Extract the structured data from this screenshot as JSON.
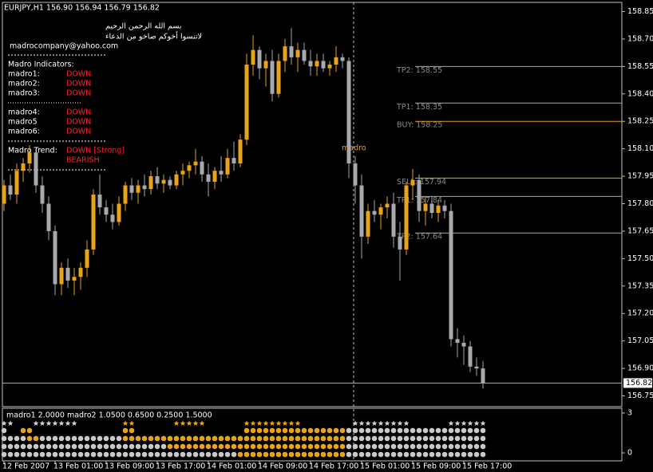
{
  "chart_data": {
    "type": "candlestick",
    "header": "EURJPY,H1  156.90 156.94 156.79 156.82",
    "up_color": "#e8a317",
    "down_color": "#a9a9a9",
    "categories": [
      "12 Feb 2007",
      null,
      null,
      null,
      null,
      null,
      null,
      null,
      "13 Feb 01:00",
      null,
      null,
      null,
      null,
      null,
      null,
      null,
      "13 Feb 09:00",
      null,
      null,
      null,
      null,
      null,
      null,
      null,
      "13 Feb 17:00",
      null,
      null,
      null,
      null,
      null,
      null,
      null,
      "14 Feb 01:00",
      null,
      null,
      null,
      null,
      null,
      null,
      null,
      "14 Feb 09:00",
      null,
      null,
      null,
      null,
      null,
      null,
      null,
      "14 Feb 17:00",
      null,
      null,
      null,
      null,
      null,
      null,
      null,
      "15 Feb 01:00",
      null,
      null,
      null,
      null,
      null,
      null,
      null,
      "15 Feb 09:00",
      null,
      null,
      null,
      null,
      null,
      null,
      null,
      "15 Feb 17:00",
      null,
      null,
      null
    ],
    "open": [
      157.8,
      157.9,
      157.85,
      157.98,
      158.02,
      158.08,
      157.9,
      157.8,
      157.65,
      157.36,
      157.45,
      157.38,
      157.4,
      157.45,
      157.55,
      157.85,
      157.78,
      157.74,
      157.7,
      157.8,
      157.9,
      157.86,
      157.9,
      157.88,
      157.95,
      157.91,
      157.93,
      157.9,
      157.96,
      157.98,
      158.01,
      158.03,
      157.96,
      157.92,
      157.98,
      157.96,
      158.05,
      158.02,
      158.15,
      158.56,
      158.64,
      158.54,
      158.58,
      158.4,
      158.58,
      158.66,
      158.6,
      158.64,
      158.58,
      158.55,
      158.58,
      158.54,
      158.56,
      158.6,
      158.58,
      158.02,
      157.9,
      157.62,
      157.76,
      157.74,
      157.78,
      157.8,
      157.62,
      157.55,
      157.9,
      157.93,
      157.76,
      157.8,
      157.75,
      157.79,
      157.76,
      157.06,
      157.04,
      157.02,
      156.91,
      156.9
    ],
    "high": [
      157.93,
      157.96,
      158.02,
      158.05,
      158.12,
      158.1,
      157.95,
      157.84,
      157.68,
      157.48,
      157.5,
      157.45,
      157.48,
      157.6,
      157.88,
      157.96,
      157.82,
      157.8,
      157.84,
      157.92,
      157.94,
      157.93,
      157.96,
      157.98,
      158.0,
      157.96,
      157.95,
      157.98,
      158.02,
      158.03,
      158.1,
      158.06,
      158.02,
      158.0,
      158.06,
      158.1,
      158.14,
      158.18,
      158.62,
      158.72,
      158.66,
      158.62,
      158.64,
      158.62,
      158.7,
      158.76,
      158.68,
      158.68,
      158.64,
      158.62,
      158.62,
      158.58,
      158.66,
      158.62,
      158.6,
      158.06,
      157.96,
      157.8,
      157.82,
      157.8,
      157.84,
      157.86,
      157.7,
      157.92,
      157.99,
      157.96,
      157.84,
      157.84,
      157.82,
      157.82,
      157.8,
      157.12,
      157.08,
      157.05,
      156.96,
      156.94
    ],
    "low": [
      157.76,
      157.82,
      157.8,
      157.92,
      157.97,
      157.86,
      157.75,
      157.6,
      157.3,
      157.3,
      157.34,
      157.3,
      157.33,
      157.4,
      157.52,
      157.74,
      157.7,
      157.66,
      157.68,
      157.76,
      157.82,
      157.8,
      157.84,
      157.85,
      157.88,
      157.86,
      157.88,
      157.88,
      157.9,
      157.94,
      157.96,
      157.92,
      157.84,
      157.88,
      157.92,
      157.94,
      157.98,
      158.0,
      158.12,
      158.5,
      158.48,
      158.44,
      158.36,
      158.38,
      158.52,
      158.56,
      158.52,
      158.56,
      158.5,
      158.5,
      158.52,
      158.5,
      158.52,
      158.54,
      157.94,
      157.8,
      157.5,
      157.58,
      157.7,
      157.66,
      157.72,
      157.56,
      157.38,
      157.52,
      157.82,
      157.7,
      157.68,
      157.72,
      157.7,
      157.72,
      157.02,
      156.96,
      156.92,
      156.88,
      156.86,
      156.79
    ],
    "close": [
      157.9,
      157.85,
      157.98,
      158.02,
      158.08,
      157.9,
      157.8,
      157.65,
      157.36,
      157.45,
      157.38,
      157.4,
      157.45,
      157.55,
      157.85,
      157.78,
      157.74,
      157.7,
      157.8,
      157.9,
      157.86,
      157.9,
      157.88,
      157.95,
      157.91,
      157.93,
      157.9,
      157.96,
      157.98,
      158.01,
      158.03,
      157.96,
      157.92,
      157.98,
      157.96,
      158.05,
      158.02,
      158.15,
      158.56,
      158.64,
      158.54,
      158.58,
      158.4,
      158.58,
      158.66,
      158.6,
      158.64,
      158.58,
      158.55,
      158.58,
      158.54,
      158.56,
      158.6,
      158.58,
      158.02,
      157.9,
      157.62,
      157.76,
      157.74,
      157.78,
      157.8,
      157.62,
      157.55,
      157.9,
      157.93,
      157.76,
      157.8,
      157.75,
      157.79,
      157.76,
      157.06,
      157.04,
      157.02,
      156.91,
      156.9,
      156.82
    ],
    "ylim": [
      156.7,
      158.9
    ],
    "yticks": [
      {
        "value": 158.85,
        "label": "158.85"
      },
      {
        "value": 158.7,
        "label": "158.70"
      },
      {
        "value": 158.55,
        "label": "158.55"
      },
      {
        "value": 158.4,
        "label": "158.40"
      },
      {
        "value": 158.25,
        "label": "158.25"
      },
      {
        "value": 158.1,
        "label": "158.10"
      },
      {
        "value": 157.95,
        "label": "157.95"
      },
      {
        "value": 157.8,
        "label": "157.80"
      },
      {
        "value": 157.65,
        "label": "157.65"
      },
      {
        "value": 157.5,
        "label": "157.50"
      },
      {
        "value": 157.35,
        "label": "157.35"
      },
      {
        "value": 157.2,
        "label": "157.20"
      },
      {
        "value": 157.05,
        "label": "157.05"
      },
      {
        "value": 156.9,
        "label": "156.90"
      },
      {
        "value": 156.75,
        "label": "156.75"
      }
    ],
    "bid": {
      "value": 156.82,
      "label": "156.82"
    },
    "levels": [
      {
        "value": 158.55,
        "label": "TP2: 158.55",
        "color": "#a9a9a9"
      },
      {
        "value": 158.35,
        "label": "TP1: 158.35",
        "color": "#a9a9a9"
      },
      {
        "value": 158.25,
        "label": "BUY: 158.25",
        "color": "#e8a317"
      },
      {
        "value": 157.94,
        "label": "SELL: 157.94",
        "color": "#e8a317"
      },
      {
        "value": 157.84,
        "label": "TP1: 157.84",
        "color": "#a9a9a9"
      },
      {
        "value": 157.64,
        "label": "TP2: 157.64",
        "color": "#a9a9a9"
      }
    ],
    "annotation": "madro",
    "info_panel": {
      "basmala": "بسم الله الرحمن الرحيم",
      "dua": "لاتنسوا أخوكم صاخو من الدعاء",
      "email": "madrocompany@yahoo.com",
      "indicators_title": "Madro Indicators:",
      "signal_color": "#ff2020",
      "indicators": [
        {
          "name": "madro1:",
          "signal": "DOWN"
        },
        {
          "name": "madro2:",
          "signal": "DOWN"
        },
        {
          "name": "madro3:",
          "signal": "DOWN"
        },
        {
          "name": "madro4:",
          "signal": "DOWN"
        },
        {
          "name": "madro5",
          "signal": "DOWN"
        },
        {
          "name": "madro6:",
          "signal": "DOWN"
        }
      ],
      "trend_label": "Madro Trend:",
      "trend": "DOWN [Strong]",
      "bias": "BEARISH"
    },
    "indicator": {
      "header": "madro1 2.0000  madro2 1.0500 0.6500 0.2500 1.5000",
      "ylim": [
        0,
        3
      ],
      "yticks": [
        3,
        0
      ],
      "stars": [
        0,
        0,
        null,
        null,
        null,
        0,
        0,
        0,
        0,
        0,
        0,
        0,
        null,
        null,
        null,
        null,
        null,
        null,
        null,
        1,
        1,
        null,
        null,
        null,
        null,
        null,
        null,
        1,
        1,
        1,
        1,
        1,
        null,
        null,
        null,
        null,
        null,
        null,
        1,
        1,
        1,
        1,
        1,
        1,
        1,
        1,
        1,
        null,
        null,
        null,
        null,
        null,
        null,
        null,
        null,
        0,
        0,
        0,
        0,
        0,
        0,
        0,
        0,
        0,
        null,
        null,
        null,
        null,
        null,
        null,
        0,
        0,
        0,
        0,
        0,
        0
      ],
      "rows": [
        [
          0,
          null,
          null,
          1,
          1,
          null,
          null,
          null,
          null,
          null,
          null,
          null,
          null,
          null,
          null,
          null,
          null,
          null,
          null,
          1,
          1,
          null,
          null,
          null,
          null,
          null,
          null,
          null,
          null,
          null,
          null,
          null,
          null,
          null,
          null,
          null,
          null,
          null,
          1,
          1,
          1,
          1,
          1,
          1,
          1,
          1,
          1,
          1,
          1,
          1,
          1,
          1,
          1,
          1,
          0,
          0,
          0,
          0,
          0,
          0,
          0,
          0,
          0,
          0,
          0,
          0,
          0,
          0,
          0,
          0,
          0,
          0,
          0,
          0,
          0,
          0
        ],
        [
          0,
          0,
          0,
          0,
          1,
          1,
          0,
          0,
          0,
          0,
          0,
          0,
          0,
          0,
          0,
          0,
          0,
          0,
          0,
          1,
          1,
          1,
          1,
          1,
          1,
          1,
          1,
          1,
          1,
          1,
          1,
          1,
          1,
          1,
          1,
          1,
          1,
          1,
          1,
          1,
          1,
          1,
          1,
          1,
          1,
          1,
          1,
          1,
          1,
          1,
          1,
          1,
          1,
          1,
          0,
          0,
          0,
          0,
          0,
          0,
          0,
          0,
          0,
          0,
          0,
          0,
          0,
          0,
          0,
          0,
          0,
          0,
          0,
          0,
          0,
          0
        ],
        [
          0,
          0,
          0,
          0,
          0,
          0,
          0,
          0,
          0,
          0,
          0,
          0,
          0,
          0,
          0,
          0,
          0,
          0,
          0,
          0,
          0,
          0,
          0,
          0,
          0,
          0,
          1,
          1,
          1,
          1,
          1,
          1,
          1,
          1,
          1,
          1,
          1,
          1,
          1,
          1,
          1,
          1,
          1,
          1,
          1,
          1,
          1,
          1,
          1,
          1,
          1,
          1,
          1,
          1,
          0,
          0,
          0,
          0,
          0,
          0,
          0,
          0,
          0,
          0,
          0,
          0,
          0,
          0,
          0,
          0,
          0,
          0,
          0,
          0,
          0,
          0
        ],
        [
          0,
          0,
          0,
          0,
          0,
          0,
          0,
          0,
          0,
          0,
          0,
          0,
          0,
          0,
          0,
          0,
          0,
          0,
          0,
          0,
          0,
          0,
          0,
          0,
          0,
          0,
          0,
          0,
          0,
          0,
          0,
          0,
          0,
          0,
          0,
          0,
          0,
          1,
          1,
          1,
          1,
          1,
          1,
          1,
          1,
          1,
          1,
          1,
          1,
          1,
          1,
          1,
          1,
          1,
          0,
          0,
          0,
          0,
          0,
          0,
          0,
          0,
          0,
          0,
          0,
          0,
          0,
          0,
          0,
          0,
          0,
          0,
          0,
          0,
          0,
          0
        ]
      ]
    }
  }
}
